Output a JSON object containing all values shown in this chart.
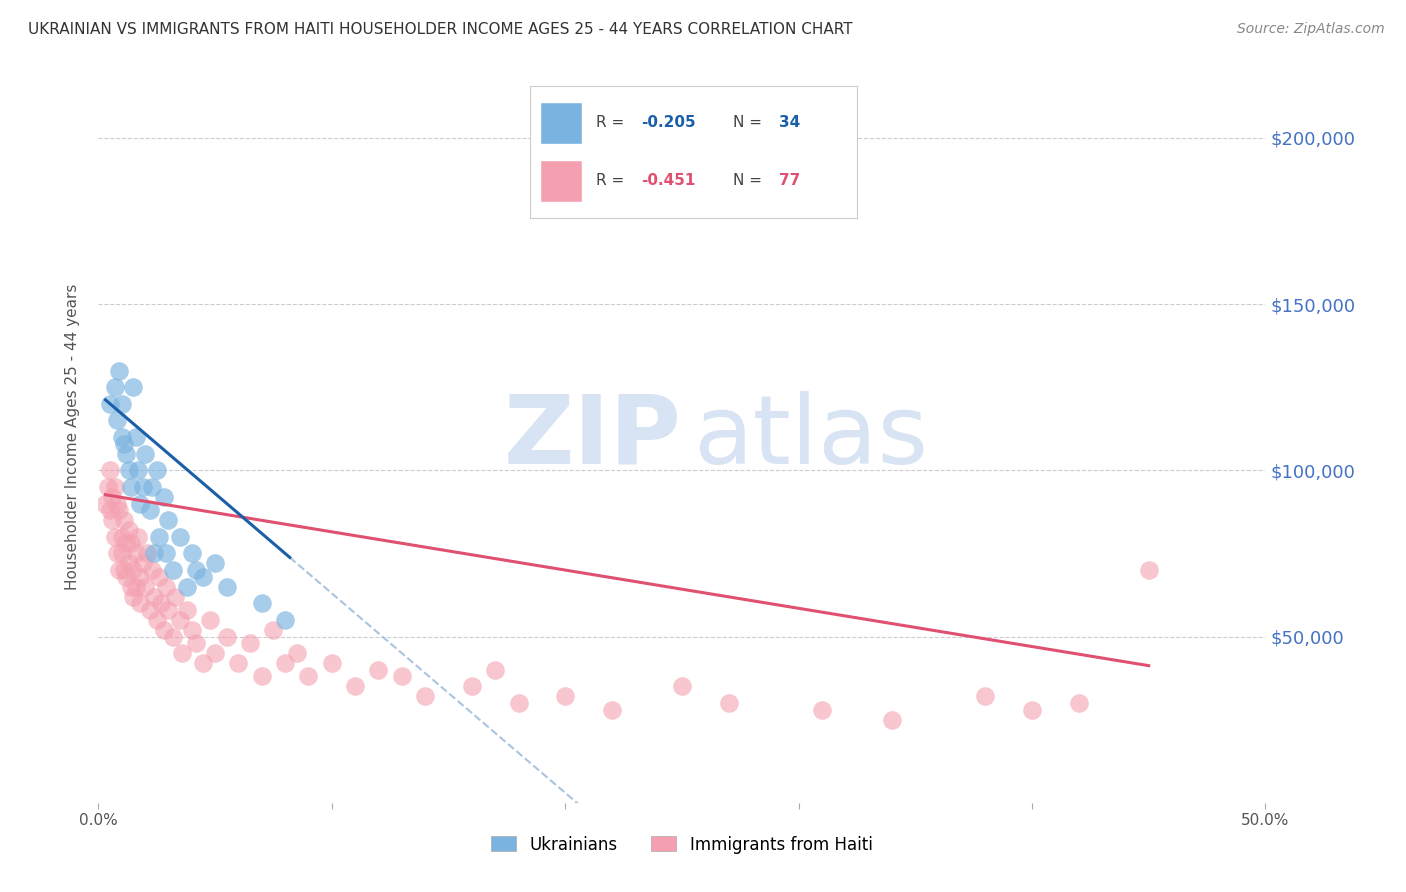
{
  "title": "UKRAINIAN VS IMMIGRANTS FROM HAITI HOUSEHOLDER INCOME AGES 25 - 44 YEARS CORRELATION CHART",
  "source": "Source: ZipAtlas.com",
  "ylabel": "Householder Income Ages 25 - 44 years",
  "xlim": [
    0.0,
    0.5
  ],
  "ylim": [
    0,
    220000
  ],
  "yticks": [
    0,
    50000,
    100000,
    150000,
    200000
  ],
  "ytick_labels": [
    "",
    "$50,000",
    "$100,000",
    "$150,000",
    "$200,000"
  ],
  "background_color": "#ffffff",
  "grid_color": "#cccccc",
  "blue_color": "#7ab3e0",
  "pink_color": "#f4a0b0",
  "blue_line_color": "#1a5fa8",
  "pink_line_color": "#e05070",
  "dashed_line_color": "#aac4e0",
  "ukrainians_x": [
    0.005,
    0.007,
    0.008,
    0.009,
    0.01,
    0.01,
    0.011,
    0.012,
    0.013,
    0.014,
    0.015,
    0.016,
    0.017,
    0.018,
    0.019,
    0.02,
    0.022,
    0.023,
    0.024,
    0.025,
    0.026,
    0.028,
    0.029,
    0.03,
    0.032,
    0.035,
    0.038,
    0.04,
    0.042,
    0.045,
    0.05,
    0.055,
    0.07,
    0.08
  ],
  "ukrainians_y": [
    120000,
    125000,
    115000,
    130000,
    110000,
    120000,
    108000,
    105000,
    100000,
    95000,
    125000,
    110000,
    100000,
    90000,
    95000,
    105000,
    88000,
    95000,
    75000,
    100000,
    80000,
    92000,
    75000,
    85000,
    70000,
    80000,
    65000,
    75000,
    70000,
    68000,
    72000,
    65000,
    60000,
    55000
  ],
  "haiti_x": [
    0.003,
    0.004,
    0.005,
    0.005,
    0.006,
    0.006,
    0.007,
    0.007,
    0.008,
    0.008,
    0.009,
    0.009,
    0.01,
    0.01,
    0.011,
    0.011,
    0.012,
    0.012,
    0.013,
    0.013,
    0.014,
    0.014,
    0.015,
    0.015,
    0.016,
    0.016,
    0.017,
    0.018,
    0.018,
    0.019,
    0.02,
    0.021,
    0.022,
    0.023,
    0.024,
    0.025,
    0.026,
    0.027,
    0.028,
    0.029,
    0.03,
    0.032,
    0.033,
    0.035,
    0.036,
    0.038,
    0.04,
    0.042,
    0.045,
    0.048,
    0.05,
    0.055,
    0.06,
    0.065,
    0.07,
    0.075,
    0.08,
    0.085,
    0.09,
    0.1,
    0.11,
    0.12,
    0.13,
    0.14,
    0.16,
    0.17,
    0.18,
    0.2,
    0.22,
    0.25,
    0.27,
    0.31,
    0.34,
    0.38,
    0.4,
    0.42,
    0.45
  ],
  "haiti_y": [
    90000,
    95000,
    88000,
    100000,
    85000,
    92000,
    80000,
    95000,
    75000,
    90000,
    70000,
    88000,
    80000,
    75000,
    85000,
    70000,
    78000,
    68000,
    82000,
    72000,
    65000,
    78000,
    70000,
    62000,
    75000,
    65000,
    80000,
    68000,
    60000,
    72000,
    65000,
    75000,
    58000,
    70000,
    62000,
    55000,
    68000,
    60000,
    52000,
    65000,
    58000,
    50000,
    62000,
    55000,
    45000,
    58000,
    52000,
    48000,
    42000,
    55000,
    45000,
    50000,
    42000,
    48000,
    38000,
    52000,
    42000,
    45000,
    38000,
    42000,
    35000,
    40000,
    38000,
    32000,
    35000,
    40000,
    30000,
    32000,
    28000,
    35000,
    30000,
    28000,
    25000,
    32000,
    28000,
    30000,
    70000
  ]
}
